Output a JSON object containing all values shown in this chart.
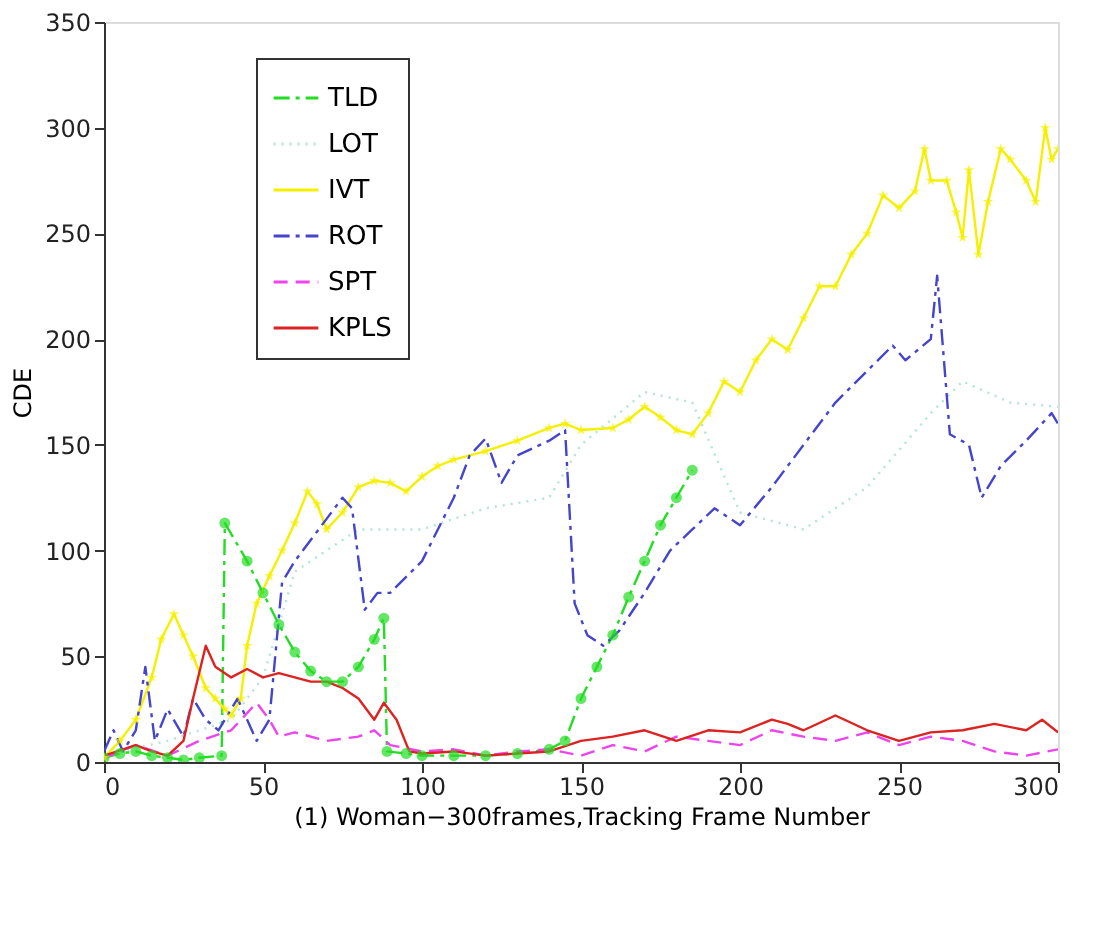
{
  "chart_data": {
    "type": "line",
    "xlabel": "(1) Woman−300frames,Tracking Frame Number",
    "ylabel": "CDE",
    "xlim": [
      0,
      300
    ],
    "xticks": [
      0,
      50,
      100,
      150,
      200,
      250,
      300
    ],
    "ylim": [
      0,
      350
    ],
    "yticks": [
      0,
      50,
      100,
      150,
      200,
      250,
      300,
      350
    ],
    "grid": false,
    "legend": "top left",
    "series": [
      {
        "name": "TLD",
        "color": "#22dd22",
        "line_style": "dashdot",
        "marker": "circle",
        "x": [
          0,
          5,
          10,
          15,
          20,
          25,
          30,
          37,
          38,
          45,
          50,
          55,
          60,
          65,
          70,
          75,
          80,
          85,
          88,
          89,
          95,
          100,
          110,
          120,
          130,
          140,
          145,
          150,
          155,
          160,
          165,
          170,
          175,
          180,
          185
        ],
        "values": [
          2,
          4,
          5,
          3,
          2,
          1,
          2,
          3,
          113,
          95,
          80,
          65,
          52,
          43,
          38,
          38,
          45,
          58,
          68,
          5,
          4,
          3,
          3,
          3,
          4,
          6,
          10,
          30,
          45,
          60,
          78,
          95,
          112,
          125,
          138
        ]
      },
      {
        "name": "LOT",
        "color": "#b0e4dc",
        "line_style": "dotted",
        "x": [
          0,
          20,
          40,
          50,
          60,
          80,
          100,
          120,
          140,
          150,
          170,
          185,
          200,
          220,
          240,
          260,
          270,
          285,
          300
        ],
        "values": [
          3,
          10,
          20,
          40,
          90,
          110,
          110,
          120,
          125,
          150,
          175,
          170,
          118,
          110,
          130,
          165,
          180,
          170,
          168
        ]
      },
      {
        "name": "IVT",
        "color": "#f5f000",
        "line_style": "solid",
        "marker": "star",
        "x": [
          0,
          5,
          10,
          15,
          18,
          22,
          25,
          28,
          32,
          35,
          38,
          40,
          43,
          45,
          48,
          52,
          56,
          60,
          64,
          67,
          70,
          75,
          80,
          85,
          90,
          95,
          100,
          105,
          110,
          120,
          130,
          140,
          145,
          150,
          160,
          165,
          170,
          175,
          180,
          185,
          190,
          195,
          200,
          205,
          210,
          215,
          220,
          225,
          230,
          235,
          240,
          245,
          250,
          255,
          258,
          260,
          265,
          268,
          270,
          272,
          275,
          278,
          282,
          285,
          290,
          293,
          296,
          298,
          300
        ],
        "values": [
          2,
          10,
          20,
          40,
          58,
          70,
          60,
          50,
          35,
          30,
          25,
          22,
          30,
          55,
          75,
          88,
          100,
          113,
          128,
          122,
          110,
          118,
          130,
          133,
          132,
          128,
          135,
          140,
          143,
          147,
          152,
          158,
          160,
          157,
          158,
          162,
          168,
          163,
          157,
          155,
          165,
          180,
          175,
          190,
          200,
          195,
          210,
          225,
          225,
          240,
          250,
          268,
          262,
          270,
          290,
          275,
          275,
          260,
          248,
          280,
          240,
          265,
          290,
          285,
          275,
          265,
          300,
          285,
          290
        ]
      },
      {
        "name": "ROT",
        "color": "#4444cc",
        "line_style": "dashdot",
        "x": [
          0,
          3,
          6,
          10,
          13,
          16,
          20,
          25,
          28,
          32,
          36,
          42,
          48,
          52,
          56,
          60,
          65,
          70,
          75,
          78,
          82,
          86,
          90,
          100,
          110,
          115,
          120,
          125,
          130,
          140,
          145,
          148,
          152,
          157,
          162,
          170,
          178,
          185,
          192,
          200,
          210,
          220,
          230,
          240,
          248,
          252,
          260,
          262,
          266,
          272,
          276,
          282,
          290,
          298,
          300
        ],
        "values": [
          5,
          15,
          5,
          15,
          45,
          10,
          25,
          12,
          30,
          20,
          15,
          30,
          10,
          20,
          85,
          95,
          105,
          115,
          125,
          120,
          72,
          80,
          80,
          95,
          125,
          145,
          153,
          132,
          145,
          152,
          157,
          75,
          60,
          55,
          62,
          80,
          100,
          110,
          120,
          112,
          130,
          150,
          170,
          185,
          197,
          190,
          200,
          230,
          155,
          150,
          125,
          140,
          152,
          165,
          160
        ]
      },
      {
        "name": "SPT",
        "color": "#ee44ee",
        "line_style": "dashed",
        "x": [
          0,
          10,
          20,
          30,
          40,
          48,
          52,
          55,
          60,
          70,
          80,
          85,
          90,
          100,
          110,
          120,
          130,
          140,
          150,
          160,
          170,
          180,
          190,
          200,
          210,
          220,
          230,
          240,
          250,
          260,
          270,
          280,
          290,
          300
        ],
        "values": [
          2,
          8,
          3,
          10,
          15,
          28,
          20,
          12,
          14,
          10,
          12,
          15,
          8,
          5,
          6,
          3,
          5,
          6,
          3,
          8,
          5,
          12,
          10,
          8,
          15,
          12,
          10,
          14,
          8,
          12,
          10,
          5,
          3,
          6
        ]
      },
      {
        "name": "KPLS",
        "color": "#dd2222",
        "line_style": "solid",
        "x": [
          0,
          10,
          15,
          20,
          25,
          28,
          32,
          35,
          40,
          45,
          50,
          55,
          60,
          65,
          70,
          75,
          80,
          85,
          88,
          92,
          96,
          100,
          110,
          120,
          130,
          140,
          150,
          160,
          170,
          180,
          190,
          200,
          210,
          215,
          220,
          230,
          240,
          250,
          260,
          270,
          280,
          290,
          295,
          300
        ],
        "values": [
          3,
          8,
          5,
          3,
          10,
          30,
          55,
          45,
          40,
          44,
          40,
          42,
          40,
          38,
          38,
          35,
          30,
          20,
          28,
          20,
          5,
          4,
          5,
          3,
          4,
          5,
          10,
          12,
          15,
          10,
          15,
          14,
          20,
          18,
          15,
          22,
          15,
          10,
          14,
          15,
          18,
          15,
          20,
          14
        ]
      }
    ]
  }
}
